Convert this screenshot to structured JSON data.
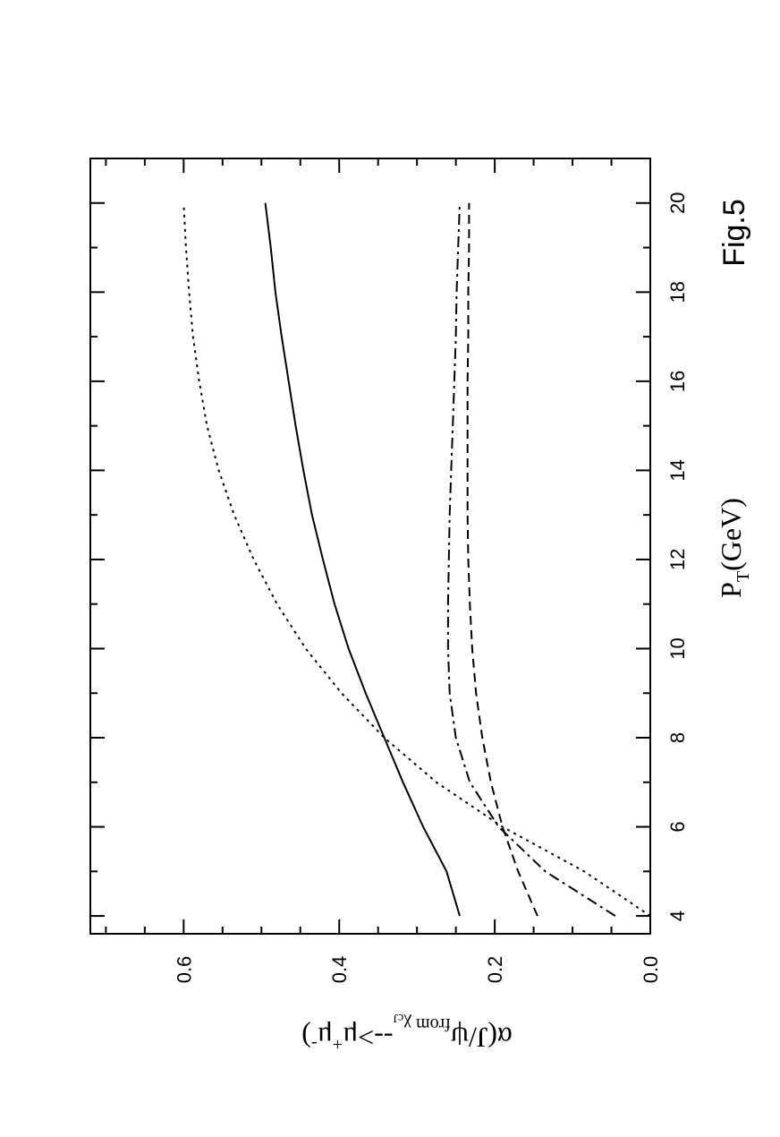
{
  "chart_data": {
    "type": "line",
    "figure_label": "Fig.5",
    "xlabel": {
      "main": "P",
      "sub": "T",
      "unit": "(GeV)"
    },
    "ylabel": {
      "prefix": "α(J/ψ",
      "sub1": "from χ",
      "sub2": "cJ",
      "arrow": "-->μ",
      "sup1": "+",
      "mid": "μ",
      "sup2": "-",
      "suffix": ")"
    },
    "xlim": [
      3.6,
      21.0
    ],
    "ylim": [
      0.0,
      0.72
    ],
    "x_ticks": [
      "4",
      "6",
      "8",
      "10",
      "12",
      "14",
      "16",
      "18",
      "20"
    ],
    "y_ticks": [
      "0.0",
      "0.2",
      "0.4",
      "0.6"
    ],
    "x_tick_values": [
      4,
      6,
      8,
      10,
      12,
      14,
      16,
      18,
      20
    ],
    "y_tick_values": [
      0.0,
      0.2,
      0.4,
      0.6
    ],
    "x_minor_step": 1,
    "y_minor_step": 0.05,
    "orientation": "rotated 90° counter-clockwise",
    "series": [
      {
        "style": "solid",
        "x": [
          4,
          5,
          6,
          7,
          8,
          9,
          10,
          11,
          12,
          13,
          14,
          15,
          16,
          17,
          18,
          19,
          20
        ],
        "y": [
          0.245,
          0.262,
          0.292,
          0.318,
          0.342,
          0.366,
          0.388,
          0.406,
          0.421,
          0.435,
          0.446,
          0.456,
          0.465,
          0.474,
          0.482,
          0.488,
          0.495
        ]
      },
      {
        "style": "dotted",
        "x": [
          4,
          5,
          6,
          7,
          8,
          9,
          10,
          11,
          12,
          13,
          14,
          15,
          16,
          17,
          18,
          19,
          20
        ],
        "y": [
          0.0,
          0.085,
          0.19,
          0.275,
          0.342,
          0.397,
          0.443,
          0.48,
          0.51,
          0.535,
          0.555,
          0.57,
          0.58,
          0.588,
          0.593,
          0.597,
          0.6
        ]
      },
      {
        "style": "dash-dot",
        "x": [
          4,
          5,
          6,
          7,
          8,
          9,
          10,
          11,
          12,
          13,
          14,
          15,
          16,
          17,
          18,
          19,
          20
        ],
        "y": [
          0.045,
          0.135,
          0.195,
          0.232,
          0.25,
          0.258,
          0.26,
          0.26,
          0.259,
          0.258,
          0.256,
          0.254,
          0.252,
          0.25,
          0.249,
          0.247,
          0.245
        ]
      },
      {
        "style": "dashed",
        "x": [
          4,
          5,
          6,
          7,
          8,
          9,
          10,
          11,
          12,
          13,
          14,
          15,
          16,
          17,
          18,
          19,
          20
        ],
        "y": [
          0.145,
          0.17,
          0.19,
          0.205,
          0.216,
          0.224,
          0.229,
          0.232,
          0.234,
          0.235,
          0.235,
          0.235,
          0.235,
          0.234,
          0.234,
          0.233,
          0.233
        ]
      }
    ]
  }
}
